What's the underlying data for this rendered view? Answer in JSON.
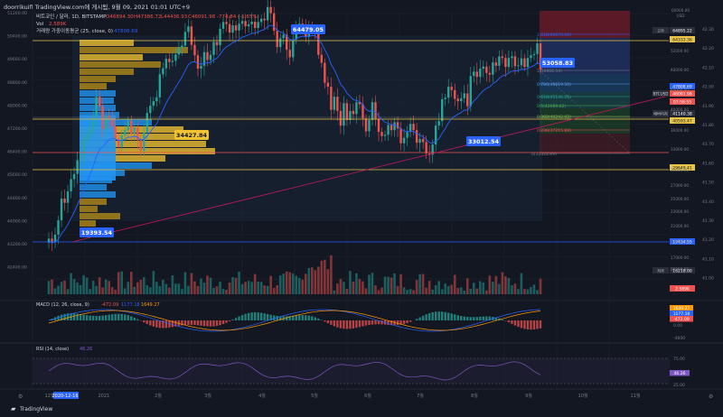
{
  "header": {
    "watermark": "doorrikuifi TradingView.com에 게시됨, 9월 09, 2021 01:01 UTC+9",
    "symbol_line": "비트코인 / 달러, 1D, BITSTAMP",
    "ohlc": {
      "o": "O46894.30",
      "h": "H47386.72",
      "l": "L44436.93",
      "c": "C46091.98",
      "chg": "-774.84 (-1.65%)"
    },
    "vol_label": "Vol",
    "vol_value": "2.589K",
    "vwma_label": "거래량 가중이동평균 (25, close, 0)",
    "vwma_value": "47808.69"
  },
  "chart_data": {
    "type": "candlestick",
    "left_axis": {
      "ticks": [
        "51200.00",
        "50400.00",
        "49600.00",
        "48800.00",
        "48000.00",
        "47200.00",
        "46400.00",
        "45600.00",
        "44800.00",
        "44000.00",
        "43200.00",
        "42400.00"
      ],
      "extra_ticks": [
        "49200.00",
        "47600.00",
        "46800.00",
        "46000.00",
        "45200.00",
        "42800.00",
        "51200.00",
        "50400.00",
        "49600.00",
        "48800.00",
        "48000.00",
        "47200.00",
        "46400.00",
        "45600.00",
        "44800.00",
        "44000.00",
        "43200.00",
        "42400.00"
      ]
    },
    "right_price_axis": {
      "ticks": [
        "60000.00",
        "52000.00",
        "48000.00",
        "44000.00",
        "40000.00",
        "36000.00",
        "33000.00",
        "30000.00",
        "27000.00",
        "25000.00",
        "23000.00",
        "21000.00",
        "19000.00",
        "17000.00",
        "15000.00"
      ],
      "currency": "USD",
      "top_tick": "60000.00",
      "top_unit": "USD"
    },
    "outer_right_axis": {
      "ticks": [
        "42.30",
        "42.20",
        "42.10",
        "42.00",
        "41.90",
        "41.80",
        "41.70",
        "41.60",
        "41.50",
        "41.40",
        "41.30",
        "41.20",
        "41.10",
        "41.00"
      ]
    },
    "x_axis": {
      "ticks": [
        "12월",
        "2020-12-16",
        "2021",
        "2월",
        "3월",
        "4월",
        "5월",
        "6월",
        "7월",
        "8월",
        "9월",
        "10월",
        "11월"
      ]
    },
    "price_labels": [
      {
        "text": "64479.05",
        "kind": "high"
      },
      {
        "text": "53058.83",
        "kind": "recent-high"
      },
      {
        "text": "34427.84",
        "kind": "mid"
      },
      {
        "text": "33012.54",
        "kind": "low"
      },
      {
        "text": "19393.54",
        "kind": "start"
      }
    ],
    "right_tags": [
      {
        "label": "고가",
        "value": "64895.22",
        "color": "#2a2e39"
      },
      {
        "label": "",
        "value": "64333.36",
        "color": "#e8c547"
      },
      {
        "label": "",
        "value": "47808.69",
        "color": "#2962ff"
      },
      {
        "label": "BTCUSD",
        "value": "46091.98",
        "color": "#ef5350"
      },
      {
        "label": "",
        "value": "07:58:55",
        "color": "#ef5350"
      },
      {
        "label": "애버리지",
        "value": "41140.38",
        "color": "#2a2e39"
      },
      {
        "label": "",
        "value": "40593.47",
        "color": "#e8c547"
      },
      {
        "label": "",
        "value": "29649.41",
        "color": "#e8c547"
      },
      {
        "label": "",
        "value": "19434.55",
        "color": "#2962ff"
      },
      {
        "label": "저가",
        "value": "16218.00",
        "color": "#2a2e39"
      },
      {
        "label": "",
        "value": "2.589K",
        "color": "#ef5350"
      }
    ],
    "fib_levels": [
      {
        "text": "1.618(69870.00)",
        "color": "#2962ff"
      },
      {
        "text": "1(56866.54)",
        "color": "#787b86"
      },
      {
        "text": "0.786(48619.50)",
        "color": "#5d9cec"
      },
      {
        "text": "0.618(45136.21)",
        "color": "#26a69a"
      },
      {
        "text": "0.5(42689.62)",
        "color": "#4caf50"
      },
      {
        "text": "0.382(40242.02)",
        "color": "#8bc34a"
      },
      {
        "text": "0.236(37215.88)",
        "color": "#ef5350"
      },
      {
        "text": "0(32322.69)",
        "color": "#787b86"
      }
    ],
    "candles_close": [
      19393,
      19100,
      19800,
      21300,
      23800,
      23300,
      24700,
      26300,
      27000,
      29000,
      29400,
      32200,
      33000,
      34000,
      36300,
      40100,
      38200,
      34000,
      36400,
      35800,
      34500,
      32400,
      31000,
      32900,
      33800,
      35500,
      33200,
      34300,
      32100,
      30400,
      33400,
      36900,
      38300,
      39200,
      40000,
      45000,
      46400,
      48700,
      47900,
      48200,
      49800,
      51600,
      52100,
      55900,
      57500,
      52300,
      49600,
      46300,
      47000,
      50400,
      48400,
      49700,
      53100,
      52200,
      56800,
      58800,
      58200,
      55700,
      57800,
      56300,
      58300,
      59100,
      57500,
      58100,
      58900,
      57000,
      58800,
      59800,
      59300,
      63500,
      61500,
      56200,
      51700,
      54100,
      55100,
      51000,
      49100,
      53800,
      57200,
      58300,
      57500,
      54500,
      57000,
      56400,
      55900,
      49700,
      47700,
      43100,
      42200,
      37500,
      40100,
      37300,
      34600,
      38800,
      35600,
      37300,
      36700,
      39000,
      38600,
      35900,
      33600,
      35600,
      39000,
      35800,
      33500,
      32800,
      33000,
      34700,
      33800,
      35200,
      34100,
      31600,
      32500,
      33500,
      34900,
      33800,
      31700,
      32300,
      31800,
      30000,
      29800,
      31400,
      34600,
      35400,
      39600,
      39900,
      42200,
      41500,
      39700,
      39200,
      39800,
      40800,
      38200,
      44600,
      45600,
      44400,
      46300,
      46800,
      45300,
      44900,
      47800,
      47000,
      49300,
      48900,
      46700,
      48900,
      49300,
      46900,
      47100,
      48800,
      46700,
      48900,
      49600,
      49900,
      52700,
      46100
    ],
    "volume_bars_count": 150,
    "macd": {
      "label": "MACD (12, 26, close, 9)",
      "values": [
        "-472.09",
        "1177.18",
        "1649.27"
      ],
      "tags": [
        "1649.27",
        "1177.18",
        "-472.09"
      ],
      "ticks": [
        "0.00",
        "-4000"
      ]
    },
    "rsi": {
      "label": "RSI (14, close)",
      "value": "46.26",
      "ticks": [
        "75.00",
        "50.00",
        "25.00"
      ]
    }
  },
  "footer": {
    "brand": "TradingView",
    "left_icon": "settings-icon",
    "right_icon": "settings-icon"
  }
}
